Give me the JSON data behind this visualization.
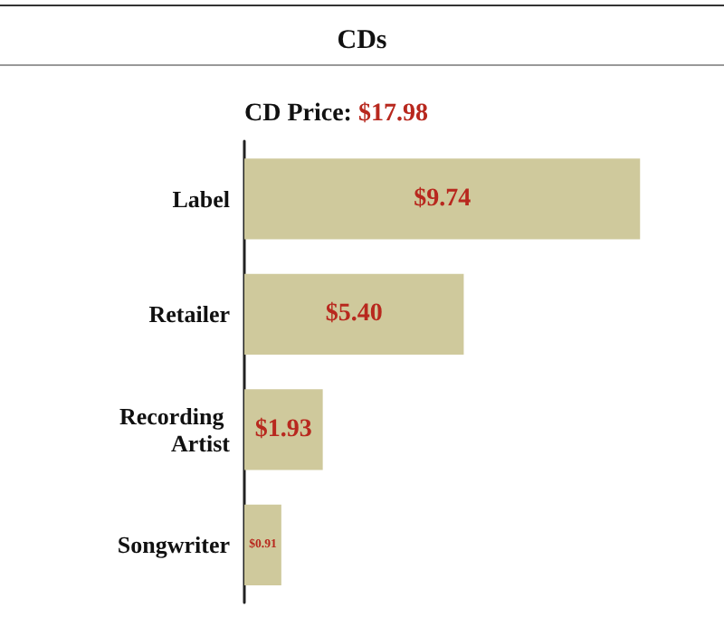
{
  "chart_data": {
    "type": "bar",
    "orientation": "horizontal",
    "title": "CDs",
    "subtitle": "CD Price: $17.98",
    "categories": [
      "Label",
      "Retailer",
      "Recording Artist",
      "Songwriter"
    ],
    "values": [
      9.74,
      5.4,
      1.93,
      0.91
    ],
    "value_labels": [
      "$9.74",
      "$5.40",
      "$1.93",
      "$0.91"
    ],
    "color": "#cfc99c"
  }
}
